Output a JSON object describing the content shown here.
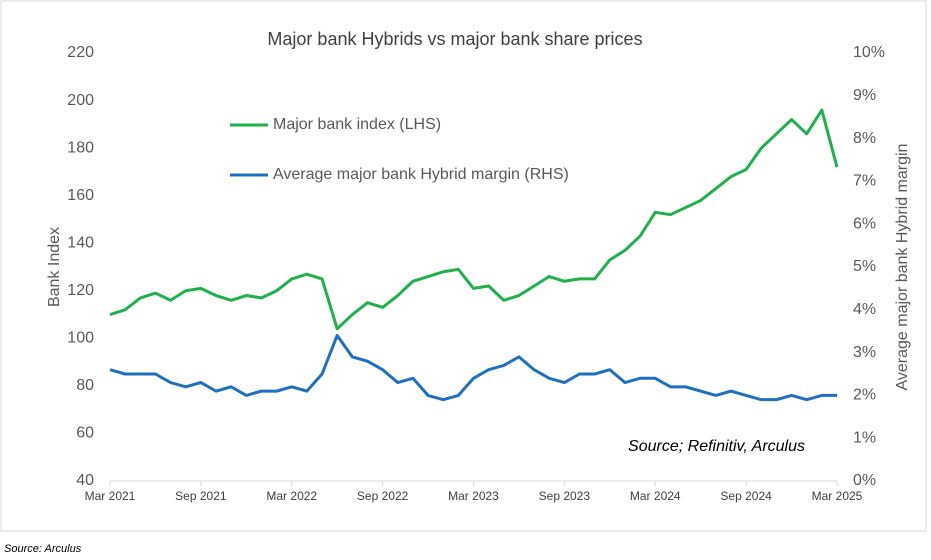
{
  "chart_data": {
    "type": "line",
    "title": "Major bank Hybrids vs major bank share prices",
    "ylabel": "Bank Index",
    "y2label": "Average major bank  Hybrid margin",
    "annotation": "Source; Refinitiv, Arculus",
    "footnote": "Source: Arculus",
    "x": [
      "2021-03",
      "2021-04",
      "2021-05",
      "2021-06",
      "2021-07",
      "2021-08",
      "2021-09",
      "2021-10",
      "2021-11",
      "2021-12",
      "2022-01",
      "2022-02",
      "2022-03",
      "2022-04",
      "2022-05",
      "2022-06",
      "2022-07",
      "2022-08",
      "2022-09",
      "2022-10",
      "2022-11",
      "2022-12",
      "2023-01",
      "2023-02",
      "2023-03",
      "2023-04",
      "2023-05",
      "2023-06",
      "2023-07",
      "2023-08",
      "2023-09",
      "2023-10",
      "2023-11",
      "2023-12",
      "2024-01",
      "2024-02",
      "2024-03",
      "2024-04",
      "2024-05",
      "2024-06",
      "2024-07",
      "2024-08",
      "2024-09",
      "2024-10",
      "2024-11",
      "2024-12",
      "2025-01",
      "2025-02",
      "2025-03"
    ],
    "xlim": [
      "2021-03",
      "2025-03"
    ],
    "xticks": [
      {
        "value": "2021-03",
        "label": "Mar 2021"
      },
      {
        "value": "2021-09",
        "label": "Sep 2021"
      },
      {
        "value": "2022-03",
        "label": "Mar 2022"
      },
      {
        "value": "2022-09",
        "label": "Sep 2022"
      },
      {
        "value": "2023-03",
        "label": "Mar 2023"
      },
      {
        "value": "2023-09",
        "label": "Sep 2023"
      },
      {
        "value": "2024-03",
        "label": "Mar 2024"
      },
      {
        "value": "2024-09",
        "label": "Sep 2024"
      },
      {
        "value": "2025-03",
        "label": "Mar 2025"
      }
    ],
    "ylim": [
      40,
      220
    ],
    "yticks": [
      40,
      60,
      80,
      100,
      120,
      140,
      160,
      180,
      200,
      220
    ],
    "y2lim": [
      0,
      10
    ],
    "y2ticks": [
      {
        "value": 0,
        "label": "0%"
      },
      {
        "value": 1,
        "label": "1%"
      },
      {
        "value": 2,
        "label": "2%"
      },
      {
        "value": 3,
        "label": "3%"
      },
      {
        "value": 4,
        "label": "4%"
      },
      {
        "value": 5,
        "label": "5%"
      },
      {
        "value": 6,
        "label": "6%"
      },
      {
        "value": 7,
        "label": "7%"
      },
      {
        "value": 8,
        "label": "8%"
      },
      {
        "value": 9,
        "label": "9%"
      },
      {
        "value": 10,
        "label": "10%"
      }
    ],
    "series": [
      {
        "name": "Major bank index (LHS)",
        "color": "#1fb04b",
        "values": [
          110,
          112,
          117,
          119,
          116,
          120,
          121,
          118,
          116,
          118,
          117,
          120,
          125,
          127,
          125,
          104,
          110,
          115,
          113,
          118,
          124,
          126,
          128,
          129,
          121,
          122,
          116,
          118,
          122,
          126,
          124,
          125,
          125,
          133,
          137,
          143,
          153,
          152,
          155,
          158,
          163,
          168,
          171,
          180,
          186,
          192,
          186,
          196,
          172
        ]
      },
      {
        "name": "Average major bank Hybrid margin (RHS)",
        "color": "#1f6fbf",
        "axis": "y2",
        "values": [
          2.6,
          2.5,
          2.5,
          2.5,
          2.3,
          2.2,
          2.3,
          2.1,
          2.2,
          2.0,
          2.1,
          2.1,
          2.2,
          2.1,
          2.5,
          3.4,
          2.9,
          2.8,
          2.6,
          2.3,
          2.4,
          2.0,
          1.9,
          2.0,
          2.4,
          2.6,
          2.7,
          2.9,
          2.6,
          2.4,
          2.3,
          2.5,
          2.5,
          2.6,
          2.3,
          2.4,
          2.4,
          2.2,
          2.2,
          2.1,
          2.0,
          2.1,
          2.0,
          1.9,
          1.9,
          2.0,
          1.9,
          2.0,
          2.0
        ]
      }
    ]
  }
}
